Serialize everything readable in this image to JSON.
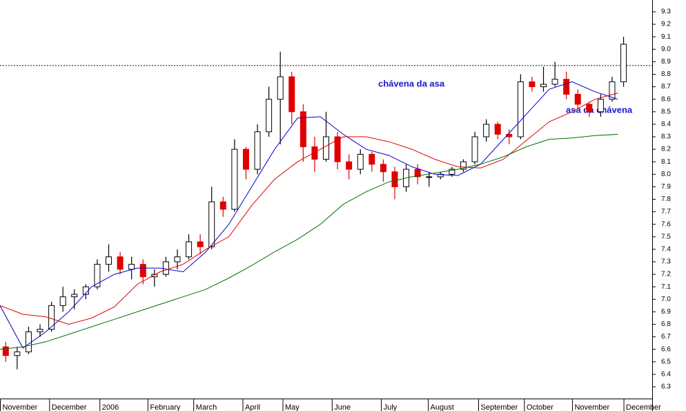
{
  "chart_data": {
    "type": "candlestick",
    "annotations": [
      "chávena da asa",
      "asa da chávena"
    ],
    "xlim": [
      0,
      57
    ],
    "xticks": [
      {
        "value": 0,
        "label": "November"
      },
      {
        "value": 4.3,
        "label": "December"
      },
      {
        "value": 8.7,
        "label": "2006"
      },
      {
        "value": 12.9,
        "label": "February"
      },
      {
        "value": 16.9,
        "label": "March"
      },
      {
        "value": 21.2,
        "label": "April"
      },
      {
        "value": 24.7,
        "label": "May"
      },
      {
        "value": 29,
        "label": "June"
      },
      {
        "value": 33.3,
        "label": "July"
      },
      {
        "value": 37.4,
        "label": "August"
      },
      {
        "value": 41.8,
        "label": "September"
      },
      {
        "value": 45.8,
        "label": "October"
      },
      {
        "value": 50,
        "label": "November"
      },
      {
        "value": 54.5,
        "label": "December"
      }
    ],
    "ylim": [
      6.2,
      9.4
    ],
    "yticks": [
      6.3,
      6.4,
      6.5,
      6.6,
      6.7,
      6.8,
      6.9,
      {
        "value": 7,
        "label": "7.0"
      },
      7.1,
      7.2,
      7.3,
      7.4,
      7.5,
      7.6,
      7.7,
      7.8,
      7.9,
      {
        "value": 8,
        "label": "8.0"
      },
      8.1,
      8.2,
      8.3,
      8.4,
      8.5,
      8.6,
      8.7,
      8.8,
      8.9,
      {
        "value": 9,
        "label": "9.0"
      },
      9.1,
      9.2,
      9.3
    ],
    "hline": 8.87,
    "up_color": "#000000",
    "down_color": "#e00000",
    "candles": {
      "x": [
        0.5,
        1.5,
        2.5,
        3.5,
        4.5,
        5.5,
        6.5,
        7.5,
        8.5,
        9.5,
        10.5,
        11.5,
        12.5,
        13.5,
        14.5,
        15.5,
        16.5,
        17.5,
        18.5,
        19.5,
        20.5,
        21.5,
        22.5,
        23.5,
        24.5,
        25.5,
        26.5,
        27.5,
        28.5,
        29.5,
        30.5,
        31.5,
        32.5,
        33.5,
        34.5,
        35.5,
        36.5,
        37.5,
        38.5,
        39.5,
        40.5,
        41.5,
        42.5,
        43.5,
        44.5,
        45.5,
        46.5,
        47.5,
        48.5,
        49.5,
        50.5,
        51.5,
        52.5,
        53.5,
        54.5
      ],
      "open": [
        6.62,
        6.55,
        6.58,
        6.74,
        6.76,
        6.95,
        7.02,
        7.04,
        7.1,
        7.28,
        7.34,
        7.24,
        7.28,
        7.18,
        7.2,
        7.3,
        7.34,
        7.46,
        7.42,
        7.78,
        7.72,
        8.2,
        8.04,
        8.34,
        8.6,
        8.78,
        8.5,
        8.22,
        8.12,
        8.3,
        8.1,
        8.04,
        8.16,
        8.08,
        8.02,
        7.9,
        8.04,
        7.98,
        7.98,
        8.0,
        8.04,
        8.1,
        8.3,
        8.4,
        8.32,
        8.3,
        8.74,
        8.7,
        8.72,
        8.76,
        8.64,
        8.56,
        8.5,
        8.6,
        8.74
      ],
      "high": [
        6.66,
        6.62,
        6.78,
        6.8,
        6.98,
        7.1,
        7.08,
        7.12,
        7.32,
        7.44,
        7.38,
        7.34,
        7.32,
        7.24,
        7.34,
        7.4,
        7.52,
        7.52,
        7.9,
        7.82,
        8.28,
        8.22,
        8.4,
        8.7,
        8.98,
        8.82,
        8.56,
        8.3,
        8.5,
        8.34,
        8.16,
        8.2,
        8.18,
        8.12,
        8.06,
        8.08,
        8.08,
        8.02,
        8.02,
        8.06,
        8.12,
        8.34,
        8.44,
        8.42,
        8.36,
        8.8,
        8.78,
        8.86,
        8.9,
        8.82,
        8.68,
        8.58,
        8.64,
        8.78,
        9.1
      ],
      "low": [
        6.5,
        6.44,
        6.56,
        6.7,
        6.74,
        6.9,
        6.92,
        7.0,
        7.08,
        7.22,
        7.2,
        7.16,
        7.12,
        7.1,
        7.18,
        7.24,
        7.32,
        7.36,
        7.4,
        7.66,
        7.7,
        7.96,
        8.0,
        8.3,
        8.24,
        8.4,
        8.1,
        8.02,
        8.1,
        8.04,
        7.96,
        8.0,
        8.02,
        7.94,
        7.8,
        7.86,
        7.92,
        7.9,
        7.96,
        7.98,
        8.02,
        8.08,
        8.26,
        8.28,
        8.24,
        8.28,
        8.66,
        8.66,
        8.7,
        8.6,
        8.52,
        8.46,
        8.46,
        8.58,
        8.7
      ],
      "close": [
        6.55,
        6.58,
        6.74,
        6.76,
        6.95,
        7.02,
        7.04,
        7.1,
        7.28,
        7.34,
        7.24,
        7.28,
        7.18,
        7.2,
        7.3,
        7.34,
        7.46,
        7.42,
        7.78,
        7.72,
        8.2,
        8.04,
        8.34,
        8.6,
        8.78,
        8.5,
        8.22,
        8.12,
        8.3,
        8.1,
        8.04,
        8.16,
        8.08,
        8.02,
        7.9,
        8.04,
        7.98,
        7.98,
        8.0,
        8.04,
        8.1,
        8.3,
        8.4,
        8.32,
        8.3,
        8.74,
        8.7,
        8.72,
        8.76,
        8.64,
        8.56,
        8.5,
        8.6,
        8.74,
        9.04
      ]
    },
    "series": [
      {
        "color": "#0000cc",
        "x": [
          0,
          2,
          4,
          6,
          8,
          10,
          12,
          14,
          16,
          18,
          20,
          22,
          24,
          26,
          28,
          30,
          32,
          34,
          36,
          38,
          40,
          42,
          44,
          46,
          48,
          50,
          52,
          54
        ],
        "values": [
          6.95,
          6.61,
          6.74,
          6.9,
          7.1,
          7.2,
          7.25,
          7.25,
          7.22,
          7.38,
          7.6,
          7.9,
          8.2,
          8.45,
          8.46,
          8.32,
          8.2,
          8.15,
          8.06,
          8.0,
          7.99,
          8.08,
          8.28,
          8.48,
          8.68,
          8.74,
          8.66,
          8.6
        ]
      },
      {
        "color": "#dd0000",
        "x": [
          0,
          2,
          4,
          6,
          8,
          10,
          12,
          14,
          16,
          18,
          20,
          22,
          24,
          26,
          28,
          30,
          32,
          34,
          36,
          38,
          40,
          42,
          44,
          46,
          48,
          50,
          52,
          54
        ],
        "values": [
          6.95,
          6.88,
          6.86,
          6.8,
          6.85,
          6.94,
          7.12,
          7.22,
          7.28,
          7.4,
          7.5,
          7.75,
          7.96,
          8.1,
          8.2,
          8.3,
          8.3,
          8.26,
          8.2,
          8.12,
          8.06,
          8.05,
          8.12,
          8.27,
          8.42,
          8.5,
          8.6,
          8.65
        ]
      },
      {
        "color": "#007000",
        "x": [
          0,
          2,
          4,
          6,
          8,
          10,
          12,
          14,
          16,
          18,
          20,
          22,
          24,
          26,
          28,
          30,
          32,
          34,
          36,
          38,
          40,
          42,
          44,
          46,
          48,
          50,
          52,
          54
        ],
        "values": [
          6.6,
          6.62,
          6.66,
          6.72,
          6.78,
          6.84,
          6.9,
          6.96,
          7.02,
          7.08,
          7.17,
          7.27,
          7.38,
          7.48,
          7.6,
          7.76,
          7.86,
          7.94,
          7.98,
          8.01,
          8.04,
          8.08,
          8.14,
          8.22,
          8.28,
          8.29,
          8.31,
          8.32
        ]
      }
    ]
  }
}
